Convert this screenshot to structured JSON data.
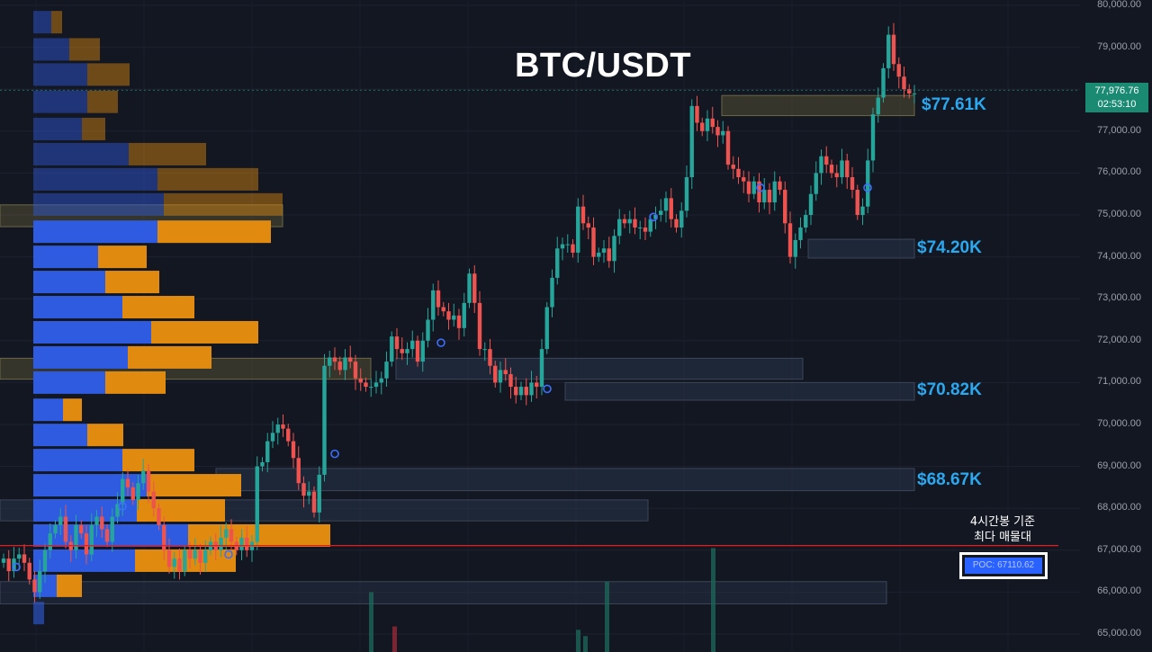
{
  "chart_data": {
    "type": "candlestick",
    "title": "BTC/USDT",
    "ylim": [
      64700,
      80050
    ],
    "y_ticks": [
      "80,000.00",
      "79,000.00",
      "78,000.00",
      "77,000.00",
      "76,000.00",
      "75,000.00",
      "74,000.00",
      "73,000.00",
      "72,000.00",
      "71,000.00",
      "70,000.00",
      "69,000.00",
      "68,000.00",
      "67,000.00",
      "66,000.00",
      "65,000.00"
    ],
    "y_tick_values": [
      80000,
      79000,
      78000,
      77000,
      76000,
      75000,
      74000,
      73000,
      72000,
      71000,
      70000,
      69000,
      68000,
      67000,
      66000,
      65000
    ],
    "current_price": "77,976.76",
    "countdown": "02:53:10",
    "poc_label": "POC: 67110.62",
    "poc_value": 67110.62,
    "annotation_line1": "4시간봉 기준",
    "annotation_line2": "최다 매물대",
    "levels": [
      {
        "label": "$77.61K",
        "value": 77610
      },
      {
        "label": "$74.20K",
        "value": 74200
      },
      {
        "label": "$70.82K",
        "value": 70820
      },
      {
        "label": "$68.67K",
        "value": 68670
      }
    ],
    "closes": [
      66800,
      66500,
      66800,
      66900,
      66700,
      66300,
      66000,
      66500,
      67000,
      67400,
      67600,
      67800,
      67200,
      67000,
      67600,
      67400,
      66900,
      67600,
      67800,
      67500,
      67200,
      67800,
      68100,
      68700,
      68500,
      68200,
      68600,
      68900,
      68400,
      68000,
      67600,
      67000,
      66600,
      66800,
      66500,
      67000,
      66800,
      67000,
      66700,
      67000,
      67200,
      67000,
      67300,
      67500,
      67200,
      67000,
      67300,
      67000,
      67200,
      69000,
      69100,
      69600,
      69800,
      70000,
      69900,
      69600,
      69200,
      68600,
      68300,
      68400,
      67900,
      68800,
      71400,
      71600,
      71500,
      71300,
      71600,
      71500,
      71100,
      71000,
      70900,
      70900,
      71000,
      71100,
      71500,
      72100,
      71800,
      71700,
      71800,
      72000,
      71500,
      72000,
      72500,
      73200,
      72800,
      72700,
      72500,
      72600,
      72300,
      72900,
      73600,
      72900,
      71800,
      71800,
      71400,
      71000,
      71300,
      71200,
      70900,
      70700,
      70900,
      70700,
      71000,
      70900,
      71800,
      72800,
      73500,
      74200,
      74300,
      74300,
      74100,
      75200,
      74800,
      74700,
      74000,
      74100,
      74200,
      73900,
      74500,
      74900,
      74800,
      74900,
      74700,
      74700,
      74600,
      74900,
      75000,
      75100,
      75400,
      74900,
      74700,
      75100,
      75900,
      77600,
      77200,
      77000,
      77300,
      77100,
      76900,
      77000,
      76200,
      76100,
      75900,
      75800,
      75500,
      75800,
      75300,
      75600,
      75300,
      75800,
      75600,
      74800,
      74000,
      74400,
      74700,
      75000,
      75500,
      76000,
      76400,
      76200,
      76000,
      75900,
      76300,
      75900,
      75600,
      75000,
      75200,
      76300,
      77400,
      77800,
      78500,
      79300,
      78600,
      78300,
      78000,
      77900,
      77900
    ]
  }
}
